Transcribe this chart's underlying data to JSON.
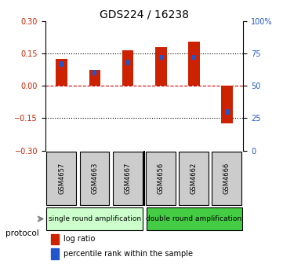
{
  "title": "GDS224 / 16238",
  "samples": [
    "GSM4657",
    "GSM4663",
    "GSM4667",
    "GSM4656",
    "GSM4662",
    "GSM4666"
  ],
  "log_ratio": [
    0.125,
    0.075,
    0.165,
    0.18,
    0.205,
    -0.175
  ],
  "percentile_rank": [
    67,
    60,
    68,
    72,
    72,
    30
  ],
  "left_ylim": [
    -0.3,
    0.3
  ],
  "right_ylim": [
    0,
    100
  ],
  "left_yticks": [
    -0.3,
    -0.15,
    0,
    0.15,
    0.3
  ],
  "right_yticks": [
    0,
    25,
    50,
    75,
    100
  ],
  "right_yticklabels": [
    "0",
    "25",
    "50",
    "75",
    "100%"
  ],
  "bar_color_red": "#cc2200",
  "bar_color_blue": "#2255cc",
  "group1_label": "single round amplification",
  "group2_label": "double round amplification",
  "protocol_label": "protocol",
  "legend1": "log ratio",
  "legend2": "percentile rank within the sample",
  "bar_width": 0.35,
  "percentile_bar_width": 0.12,
  "zero_line_color": "#cc0000",
  "bg_color": "#ffffff",
  "group_color1": "#ccffcc",
  "group_color2": "#44cc44",
  "sample_bg_color": "#cccccc"
}
